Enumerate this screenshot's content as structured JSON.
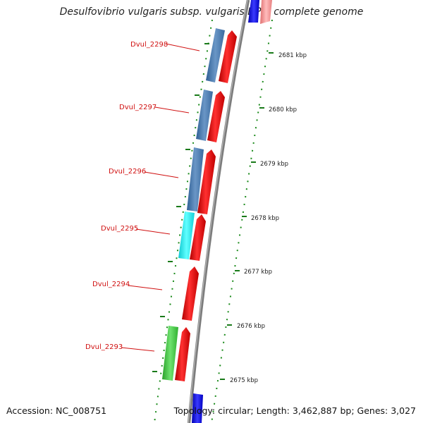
{
  "title": "Desulfovibrio vulgaris subsp. vulgaris DP4, complete genome",
  "footer": {
    "accession": "Accession: NC_008751",
    "summary": "Topology: circular; Length: 3,462,887 bp; Genes: 3,027"
  },
  "colors": {
    "backbone": "#8a8a8a",
    "forward_cds": "#ee1111",
    "reverse_cds": "#4f7fb4",
    "reverse_cds_alt": "#22e8ee",
    "reverse_cds_green": "#3fcc3f",
    "partial_gene": "#1010dd",
    "label": "#d01010",
    "tick": "#1a7a1a",
    "kbp_text": "#222222"
  },
  "kbp_ticks": [
    "2681 kbp",
    "2680 kbp",
    "2679 kbp",
    "2678 kbp",
    "2677 kbp",
    "2676 kbp",
    "2675 kbp"
  ],
  "genes": [
    {
      "label": "Dvul_2298",
      "has_reverse": true,
      "reverse_color_key": "reverse_cds"
    },
    {
      "label": "Dvul_2297",
      "has_reverse": true,
      "reverse_color_key": "reverse_cds"
    },
    {
      "label": "Dvul_2296",
      "has_reverse": true,
      "reverse_color_key": "reverse_cds"
    },
    {
      "label": "Dvul_2295",
      "has_reverse": true,
      "reverse_color_key": "reverse_cds_alt"
    },
    {
      "label": "Dvul_2294",
      "has_reverse": false,
      "reverse_color_key": ""
    },
    {
      "label": "Dvul_2293",
      "has_reverse": true,
      "reverse_color_key": "reverse_cds_green"
    }
  ]
}
